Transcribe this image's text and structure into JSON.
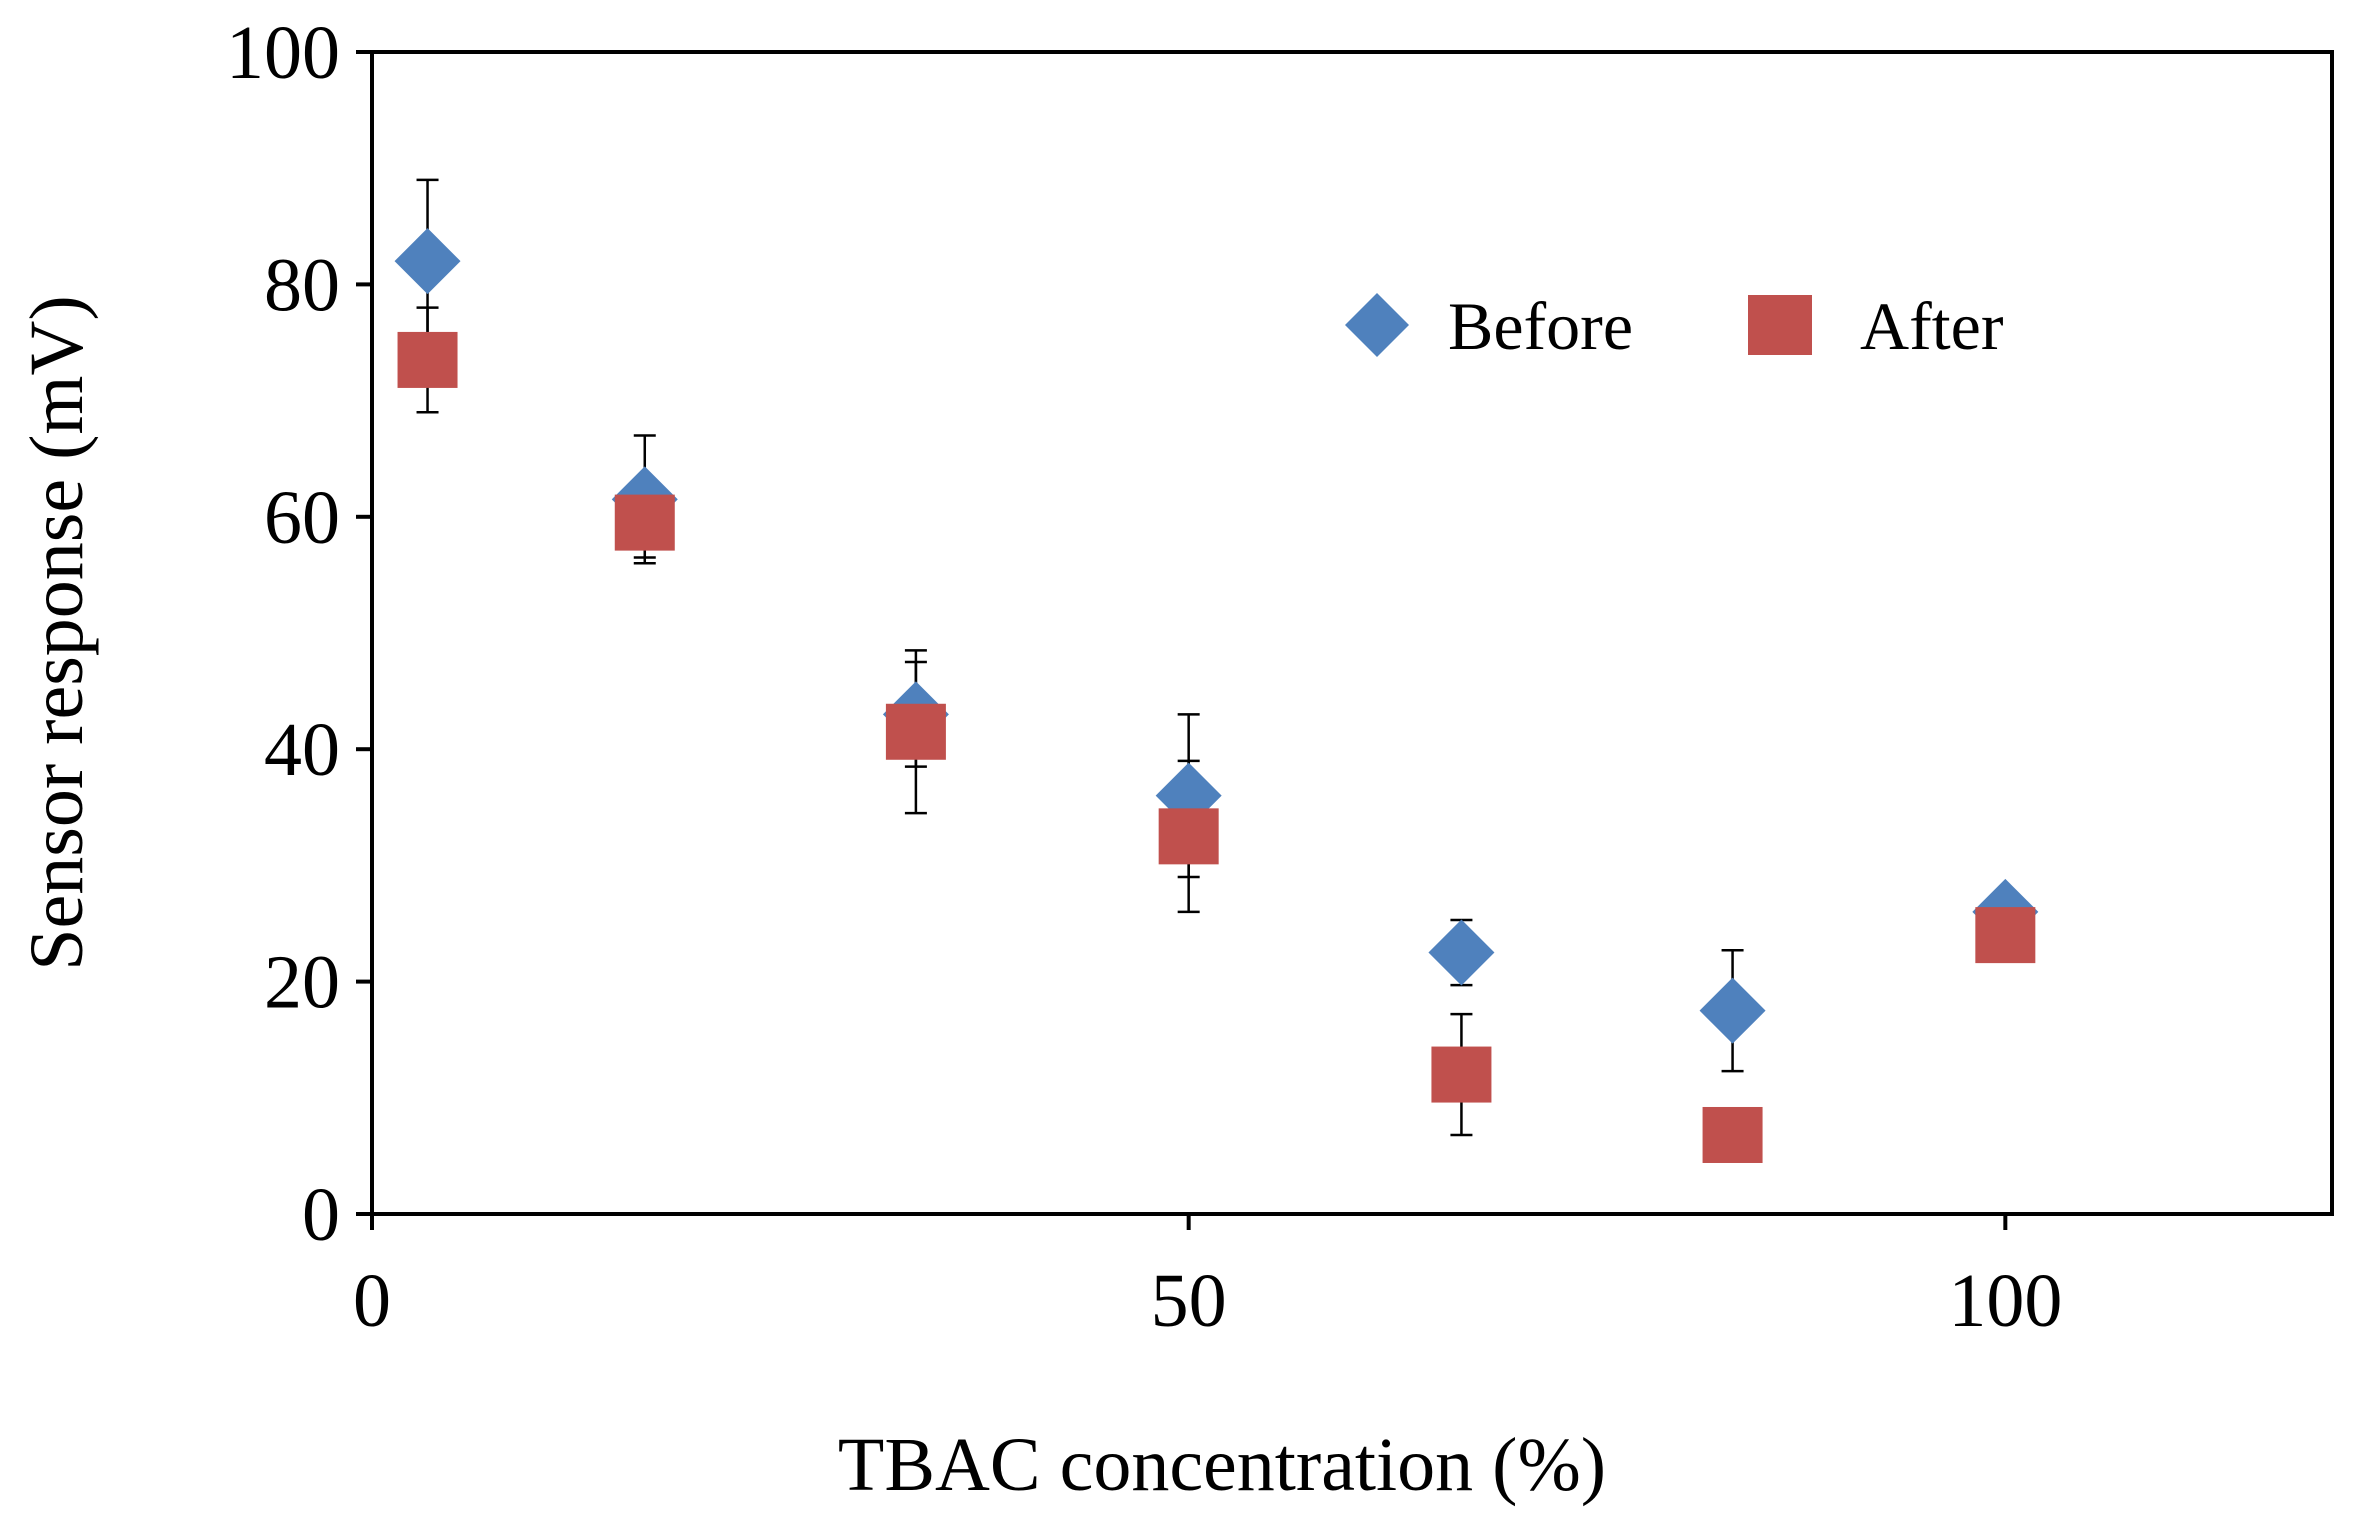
{
  "chart_data": {
    "type": "scatter",
    "title": "",
    "xlabel": "TBAC concentration (%)",
    "ylabel": "Sensor response (mV)",
    "xlim": [
      0,
      120
    ],
    "ylim": [
      0,
      100
    ],
    "x_ticks": [
      0,
      50,
      100
    ],
    "y_ticks": [
      0,
      20,
      40,
      60,
      80,
      100
    ],
    "legend_position": "top-right-inside",
    "grid": false,
    "series": [
      {
        "name": "Before",
        "marker": "diamond",
        "color": "#4F81BD",
        "points": [
          {
            "x": 3.4,
            "y": 82.0,
            "err": 7.0
          },
          {
            "x": 16.7,
            "y": 61.5,
            "err": 5.5
          },
          {
            "x": 33.3,
            "y": 43.0,
            "err": 4.5
          },
          {
            "x": 50.0,
            "y": 36.0,
            "err": 7.0
          },
          {
            "x": 66.7,
            "y": 22.5,
            "err": 2.8
          },
          {
            "x": 83.3,
            "y": 17.5,
            "err": 5.2
          },
          {
            "x": 100.0,
            "y": 26.0,
            "err": 0.0
          }
        ]
      },
      {
        "name": "After",
        "marker": "square",
        "color": "#C0504D",
        "points": [
          {
            "x": 3.4,
            "y": 73.5,
            "err": 4.5
          },
          {
            "x": 16.7,
            "y": 59.5,
            "err": 3.0
          },
          {
            "x": 33.3,
            "y": 41.5,
            "err": 7.0
          },
          {
            "x": 50.0,
            "y": 32.5,
            "err": 6.5
          },
          {
            "x": 66.7,
            "y": 12.0,
            "err": 5.2
          },
          {
            "x": 83.3,
            "y": 6.8,
            "err": 0.0
          },
          {
            "x": 100.0,
            "y": 24.0,
            "err": 0.0
          }
        ]
      }
    ]
  }
}
